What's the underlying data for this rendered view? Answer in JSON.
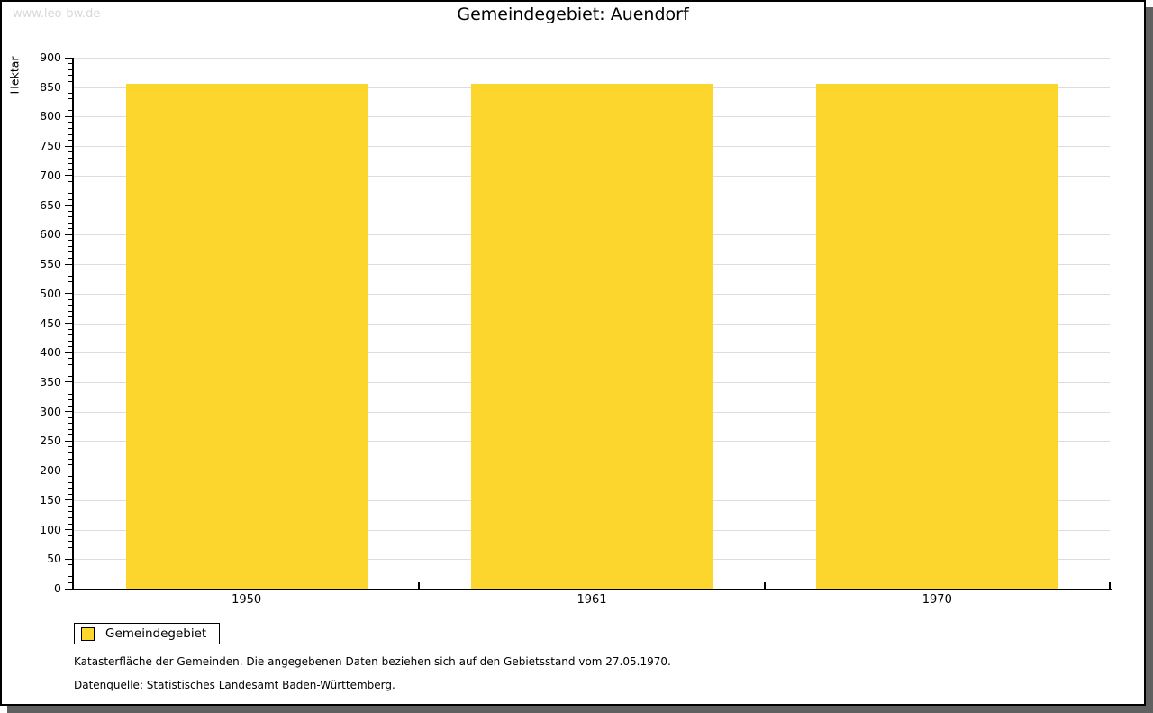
{
  "watermark": "www.leo-bw.de",
  "title": "Gemeindegebiet: Auendorf",
  "chart_data": {
    "type": "bar",
    "title": "Gemeindegebiet: Auendorf",
    "xlabel": "",
    "ylabel": "Hektar",
    "categories": [
      "1950",
      "1961",
      "1970"
    ],
    "series": [
      {
        "name": "Gemeindegebiet",
        "values": [
          856,
          856,
          856
        ]
      }
    ],
    "ylim": [
      0,
      900
    ],
    "y_major_step": 50,
    "y_minor_step": 10,
    "grid": true,
    "legend_position": "bottom-left"
  },
  "legend": {
    "items": [
      {
        "label": "Gemeindegebiet",
        "color": "#FCD52D"
      }
    ]
  },
  "footnotes": [
    "Katasterfläche der Gemeinden. Die angegebenen Daten beziehen sich auf den Gebietsstand vom 27.05.1970.",
    "Datenquelle: Statistisches Landesamt Baden-Württemberg."
  ],
  "colors": {
    "bar": "#FCD52D",
    "gridline": "#DDDDDD",
    "axis": "#000000",
    "watermark": "#D8D8D8",
    "panel_shadow": "#606060"
  }
}
